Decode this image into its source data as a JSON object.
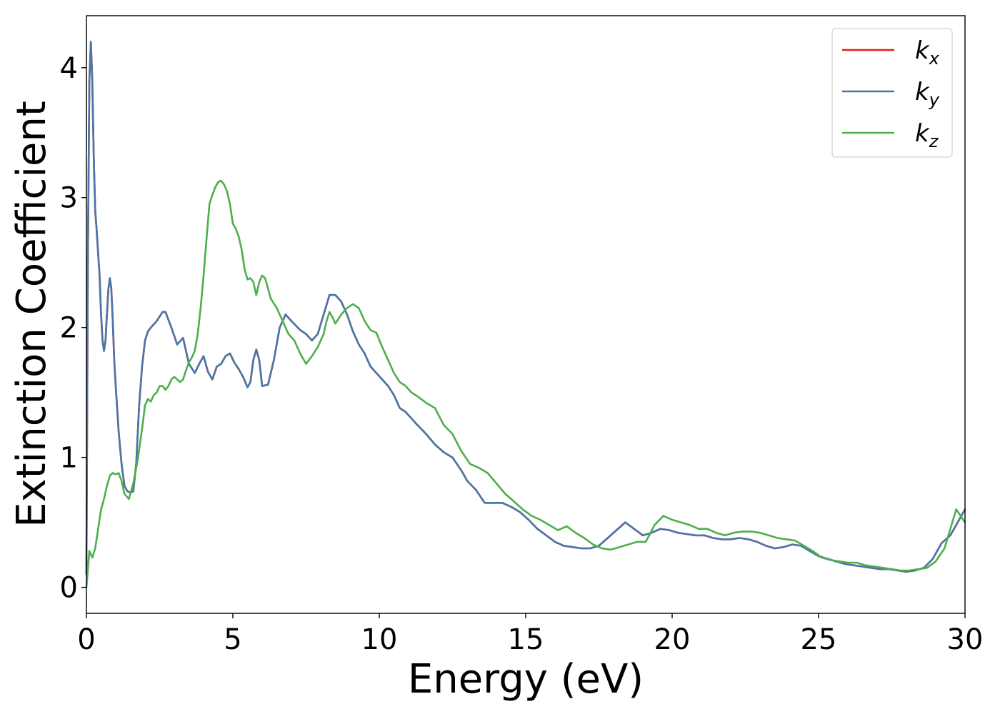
{
  "chart_data": {
    "type": "line",
    "title": "",
    "xlabel": "Energy (eV)",
    "ylabel": "Extinction Coefficient",
    "xlim": [
      0,
      30
    ],
    "ylim": [
      -0.2,
      4.4
    ],
    "xticks": [
      0,
      5,
      10,
      15,
      20,
      25,
      30
    ],
    "xtick_labels": [
      "0",
      "5",
      "10",
      "15",
      "20",
      "25",
      "30"
    ],
    "yticks": [
      0,
      1,
      2,
      3,
      4
    ],
    "ytick_labels": [
      "0",
      "1",
      "2",
      "3",
      "4"
    ],
    "grid": false,
    "legend_position": "top-right",
    "series": [
      {
        "name": "k_x",
        "legend_base": "k",
        "legend_sub": "x",
        "color": "#e41a1c",
        "x": [
          0,
          0.05,
          0.1,
          0.15,
          0.2,
          0.25,
          0.3,
          0.35,
          0.45,
          0.5,
          0.55,
          0.6,
          0.65,
          0.7,
          0.75,
          0.8,
          0.85,
          0.9,
          0.95,
          1.0,
          1.1,
          1.2,
          1.3,
          1.4,
          1.5,
          1.6,
          1.7,
          1.8,
          1.9,
          2.0,
          2.1,
          2.2,
          2.4,
          2.6,
          2.7,
          2.9,
          3.1,
          3.3,
          3.5,
          3.7,
          3.85,
          4.0,
          4.15,
          4.3,
          4.45,
          4.6,
          4.75,
          4.9,
          5.05,
          5.2,
          5.35,
          5.5,
          5.6,
          5.7,
          5.8,
          5.9,
          6.0,
          6.2,
          6.4,
          6.6,
          6.8,
          7.0,
          7.3,
          7.5,
          7.7,
          7.9,
          8.1,
          8.3,
          8.5,
          8.7,
          8.9,
          9.1,
          9.3,
          9.5,
          9.7,
          9.9,
          10.1,
          10.3,
          10.5,
          10.7,
          10.9,
          11.1,
          11.3,
          11.6,
          11.9,
          12.2,
          12.5,
          12.8,
          13.0,
          13.3,
          13.6,
          13.9,
          14.2,
          14.5,
          14.8,
          15.1,
          15.4,
          15.7,
          16.0,
          16.3,
          16.6,
          16.9,
          17.2,
          17.5,
          17.8,
          18.1,
          18.4,
          18.7,
          19.0,
          19.3,
          19.6,
          19.9,
          20.2,
          20.5,
          20.8,
          21.1,
          21.4,
          21.7,
          22.0,
          22.3,
          22.6,
          22.9,
          23.2,
          23.5,
          23.8,
          24.1,
          24.4,
          24.7,
          25.0,
          25.3,
          25.6,
          25.9,
          26.2,
          26.5,
          26.8,
          27.1,
          27.4,
          27.7,
          28.0,
          28.3,
          28.6,
          28.9,
          29.2,
          29.5,
          29.8,
          30.0
        ],
        "y": [
          0.1,
          2.5,
          3.9,
          4.2,
          3.9,
          3.3,
          2.9,
          2.75,
          2.4,
          2.1,
          1.9,
          1.82,
          1.9,
          2.1,
          2.3,
          2.38,
          2.3,
          2.05,
          1.75,
          1.55,
          1.2,
          0.95,
          0.78,
          0.74,
          0.73,
          0.74,
          0.95,
          1.4,
          1.7,
          1.9,
          1.97,
          2.0,
          2.05,
          2.12,
          2.12,
          2.0,
          1.87,
          1.92,
          1.72,
          1.65,
          1.72,
          1.78,
          1.66,
          1.6,
          1.7,
          1.72,
          1.78,
          1.8,
          1.73,
          1.68,
          1.62,
          1.54,
          1.58,
          1.75,
          1.83,
          1.75,
          1.55,
          1.56,
          1.75,
          2.0,
          2.1,
          2.05,
          1.98,
          1.95,
          1.9,
          1.95,
          2.1,
          2.25,
          2.25,
          2.2,
          2.1,
          1.97,
          1.87,
          1.8,
          1.7,
          1.65,
          1.6,
          1.55,
          1.48,
          1.38,
          1.35,
          1.3,
          1.25,
          1.18,
          1.1,
          1.04,
          1.0,
          0.9,
          0.82,
          0.75,
          0.65,
          0.65,
          0.65,
          0.62,
          0.58,
          0.52,
          0.45,
          0.4,
          0.35,
          0.32,
          0.31,
          0.3,
          0.3,
          0.32,
          0.38,
          0.44,
          0.5,
          0.45,
          0.4,
          0.42,
          0.45,
          0.44,
          0.42,
          0.41,
          0.4,
          0.4,
          0.38,
          0.37,
          0.37,
          0.38,
          0.37,
          0.35,
          0.32,
          0.3,
          0.31,
          0.33,
          0.32,
          0.28,
          0.24,
          0.22,
          0.2,
          0.18,
          0.17,
          0.16,
          0.15,
          0.14,
          0.14,
          0.13,
          0.12,
          0.13,
          0.15,
          0.22,
          0.34,
          0.4,
          0.52,
          0.6
        ]
      },
      {
        "name": "k_y",
        "legend_base": "k",
        "legend_sub": "y",
        "color": "#4a76a8",
        "x": [
          0,
          0.05,
          0.1,
          0.15,
          0.2,
          0.25,
          0.3,
          0.35,
          0.45,
          0.5,
          0.55,
          0.6,
          0.65,
          0.7,
          0.75,
          0.8,
          0.85,
          0.9,
          0.95,
          1.0,
          1.1,
          1.2,
          1.3,
          1.4,
          1.5,
          1.6,
          1.7,
          1.8,
          1.9,
          2.0,
          2.1,
          2.2,
          2.4,
          2.6,
          2.7,
          2.9,
          3.1,
          3.3,
          3.5,
          3.7,
          3.85,
          4.0,
          4.15,
          4.3,
          4.45,
          4.6,
          4.75,
          4.9,
          5.05,
          5.2,
          5.35,
          5.5,
          5.6,
          5.7,
          5.8,
          5.9,
          6.0,
          6.2,
          6.4,
          6.6,
          6.8,
          7.0,
          7.3,
          7.5,
          7.7,
          7.9,
          8.1,
          8.3,
          8.5,
          8.7,
          8.9,
          9.1,
          9.3,
          9.5,
          9.7,
          9.9,
          10.1,
          10.3,
          10.5,
          10.7,
          10.9,
          11.1,
          11.3,
          11.6,
          11.9,
          12.2,
          12.5,
          12.8,
          13.0,
          13.3,
          13.6,
          13.9,
          14.2,
          14.5,
          14.8,
          15.1,
          15.4,
          15.7,
          16.0,
          16.3,
          16.6,
          16.9,
          17.2,
          17.5,
          17.8,
          18.1,
          18.4,
          18.7,
          19.0,
          19.3,
          19.6,
          19.9,
          20.2,
          20.5,
          20.8,
          21.1,
          21.4,
          21.7,
          22.0,
          22.3,
          22.6,
          22.9,
          23.2,
          23.5,
          23.8,
          24.1,
          24.4,
          24.7,
          25.0,
          25.3,
          25.6,
          25.9,
          26.2,
          26.5,
          26.8,
          27.1,
          27.4,
          27.7,
          28.0,
          28.3,
          28.6,
          28.9,
          29.2,
          29.5,
          29.8,
          30.0
        ],
        "y": [
          0.1,
          2.5,
          3.9,
          4.2,
          3.9,
          3.3,
          2.9,
          2.75,
          2.4,
          2.1,
          1.9,
          1.82,
          1.9,
          2.1,
          2.3,
          2.38,
          2.3,
          2.05,
          1.75,
          1.55,
          1.2,
          0.95,
          0.78,
          0.74,
          0.73,
          0.74,
          0.95,
          1.4,
          1.7,
          1.9,
          1.97,
          2.0,
          2.05,
          2.12,
          2.12,
          2.0,
          1.87,
          1.92,
          1.72,
          1.65,
          1.72,
          1.78,
          1.66,
          1.6,
          1.7,
          1.72,
          1.78,
          1.8,
          1.73,
          1.68,
          1.62,
          1.54,
          1.58,
          1.75,
          1.83,
          1.75,
          1.55,
          1.56,
          1.75,
          2.0,
          2.1,
          2.05,
          1.98,
          1.95,
          1.9,
          1.95,
          2.1,
          2.25,
          2.25,
          2.2,
          2.1,
          1.97,
          1.87,
          1.8,
          1.7,
          1.65,
          1.6,
          1.55,
          1.48,
          1.38,
          1.35,
          1.3,
          1.25,
          1.18,
          1.1,
          1.04,
          1.0,
          0.9,
          0.82,
          0.75,
          0.65,
          0.65,
          0.65,
          0.62,
          0.58,
          0.52,
          0.45,
          0.4,
          0.35,
          0.32,
          0.31,
          0.3,
          0.3,
          0.32,
          0.38,
          0.44,
          0.5,
          0.45,
          0.4,
          0.42,
          0.45,
          0.44,
          0.42,
          0.41,
          0.4,
          0.4,
          0.38,
          0.37,
          0.37,
          0.38,
          0.37,
          0.35,
          0.32,
          0.3,
          0.31,
          0.33,
          0.32,
          0.28,
          0.24,
          0.22,
          0.2,
          0.18,
          0.17,
          0.16,
          0.15,
          0.14,
          0.14,
          0.13,
          0.12,
          0.13,
          0.15,
          0.22,
          0.34,
          0.4,
          0.52,
          0.6
        ]
      },
      {
        "name": "k_z",
        "legend_base": "k",
        "legend_sub": "z",
        "color": "#4daf4a",
        "x": [
          0,
          0.1,
          0.2,
          0.3,
          0.4,
          0.5,
          0.6,
          0.7,
          0.8,
          0.9,
          1.0,
          1.1,
          1.2,
          1.3,
          1.45,
          1.6,
          1.75,
          1.9,
          2.0,
          2.1,
          2.2,
          2.3,
          2.4,
          2.5,
          2.6,
          2.7,
          2.8,
          2.9,
          3.0,
          3.1,
          3.2,
          3.3,
          3.4,
          3.5,
          3.6,
          3.7,
          3.8,
          3.9,
          4.0,
          4.1,
          4.2,
          4.3,
          4.4,
          4.5,
          4.6,
          4.7,
          4.8,
          4.9,
          5.0,
          5.1,
          5.2,
          5.3,
          5.4,
          5.5,
          5.6,
          5.7,
          5.8,
          5.9,
          6.0,
          6.1,
          6.2,
          6.3,
          6.5,
          6.7,
          6.9,
          7.1,
          7.3,
          7.5,
          7.7,
          7.9,
          8.1,
          8.2,
          8.3,
          8.4,
          8.5,
          8.7,
          8.9,
          9.1,
          9.3,
          9.5,
          9.7,
          9.9,
          10.1,
          10.3,
          10.5,
          10.7,
          10.9,
          11.1,
          11.3,
          11.6,
          11.9,
          12.2,
          12.5,
          12.8,
          13.1,
          13.4,
          13.7,
          14.0,
          14.3,
          14.6,
          14.9,
          15.2,
          15.5,
          15.8,
          16.1,
          16.4,
          16.7,
          17.0,
          17.3,
          17.6,
          17.9,
          18.2,
          18.5,
          18.8,
          19.1,
          19.4,
          19.7,
          20.0,
          20.3,
          20.6,
          20.9,
          21.2,
          21.5,
          21.8,
          22.1,
          22.4,
          22.7,
          23.0,
          23.3,
          23.6,
          23.9,
          24.2,
          24.5,
          24.8,
          25.1,
          25.4,
          25.7,
          26.0,
          26.3,
          26.6,
          26.9,
          27.2,
          27.5,
          27.8,
          28.1,
          28.4,
          28.7,
          29.0,
          29.3,
          29.5,
          29.7,
          29.85,
          30.0
        ],
        "y": [
          0.0,
          0.28,
          0.23,
          0.3,
          0.45,
          0.6,
          0.68,
          0.78,
          0.86,
          0.88,
          0.87,
          0.88,
          0.82,
          0.72,
          0.68,
          0.8,
          0.98,
          1.22,
          1.4,
          1.45,
          1.43,
          1.48,
          1.5,
          1.55,
          1.55,
          1.52,
          1.55,
          1.6,
          1.62,
          1.6,
          1.58,
          1.6,
          1.67,
          1.73,
          1.77,
          1.82,
          1.95,
          2.15,
          2.4,
          2.68,
          2.95,
          3.02,
          3.08,
          3.12,
          3.13,
          3.1,
          3.05,
          2.95,
          2.8,
          2.76,
          2.7,
          2.6,
          2.45,
          2.37,
          2.38,
          2.35,
          2.25,
          2.35,
          2.4,
          2.38,
          2.3,
          2.22,
          2.15,
          2.05,
          1.95,
          1.9,
          1.8,
          1.72,
          1.78,
          1.85,
          1.95,
          2.05,
          2.12,
          2.08,
          2.03,
          2.1,
          2.15,
          2.18,
          2.15,
          2.05,
          1.98,
          1.96,
          1.85,
          1.75,
          1.65,
          1.58,
          1.55,
          1.5,
          1.47,
          1.42,
          1.38,
          1.25,
          1.18,
          1.05,
          0.95,
          0.92,
          0.88,
          0.8,
          0.72,
          0.66,
          0.6,
          0.55,
          0.52,
          0.48,
          0.44,
          0.47,
          0.42,
          0.38,
          0.33,
          0.3,
          0.29,
          0.31,
          0.33,
          0.35,
          0.35,
          0.48,
          0.55,
          0.52,
          0.5,
          0.48,
          0.45,
          0.45,
          0.42,
          0.4,
          0.42,
          0.43,
          0.43,
          0.42,
          0.4,
          0.38,
          0.37,
          0.36,
          0.32,
          0.28,
          0.23,
          0.21,
          0.2,
          0.19,
          0.19,
          0.17,
          0.16,
          0.15,
          0.14,
          0.13,
          0.13,
          0.14,
          0.15,
          0.2,
          0.3,
          0.45,
          0.6,
          0.55,
          0.5
        ]
      }
    ]
  }
}
